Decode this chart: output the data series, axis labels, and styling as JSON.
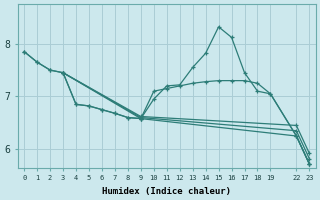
{
  "xlabel": "Humidex (Indice chaleur)",
  "bg_color": "#cce8ed",
  "grid_color": "#aacdd5",
  "line_color": "#2d7d78",
  "ylim": [
    5.65,
    8.75
  ],
  "xlim": [
    -0.5,
    22.5
  ],
  "xtick_positions": [
    0,
    1,
    2,
    3,
    4,
    5,
    6,
    7,
    8,
    9,
    10,
    11,
    12,
    13,
    14,
    15,
    16,
    17,
    18,
    19,
    21,
    22
  ],
  "xtick_labels": [
    "0",
    "1",
    "2",
    "3",
    "4",
    "5",
    "6",
    "7",
    "8",
    "9",
    "10",
    "11",
    "12",
    "13",
    "14",
    "15",
    "16",
    "17",
    "18",
    "19",
    "22",
    "23"
  ],
  "ytick_positions": [
    6,
    7,
    8
  ],
  "curves": [
    {
      "x": [
        0,
        1,
        2,
        3,
        4,
        5,
        6,
        7,
        8,
        9,
        10,
        11,
        12,
        13,
        14,
        15,
        16,
        17,
        18,
        19,
        21,
        22
      ],
      "y": [
        7.85,
        7.65,
        7.5,
        7.45,
        6.85,
        6.82,
        6.75,
        6.68,
        6.6,
        6.58,
        6.95,
        7.2,
        7.22,
        7.55,
        7.82,
        8.32,
        8.12,
        7.45,
        7.1,
        7.05,
        6.25,
        5.72
      ]
    },
    {
      "x": [
        0,
        1,
        2,
        3,
        4,
        5,
        6,
        7,
        8,
        9,
        10,
        11,
        12,
        13,
        14,
        15,
        16,
        17,
        18,
        19,
        21,
        22
      ],
      "y": [
        7.85,
        7.65,
        7.5,
        7.45,
        6.85,
        6.82,
        6.75,
        6.68,
        6.6,
        6.58,
        7.1,
        7.15,
        7.2,
        7.25,
        7.28,
        7.3,
        7.3,
        7.3,
        7.25,
        7.05,
        6.25,
        5.72
      ]
    },
    {
      "x": [
        3,
        9,
        21,
        22
      ],
      "y": [
        7.45,
        6.58,
        6.25,
        5.72
      ]
    },
    {
      "x": [
        3,
        9,
        21,
        22
      ],
      "y": [
        7.45,
        6.6,
        6.35,
        5.82
      ]
    },
    {
      "x": [
        3,
        9,
        21,
        22
      ],
      "y": [
        7.45,
        6.62,
        6.45,
        5.92
      ]
    }
  ]
}
